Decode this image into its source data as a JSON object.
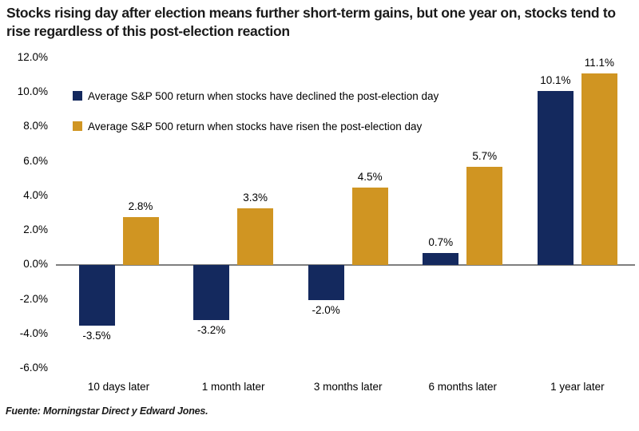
{
  "title": "Stocks rising day after election means further short-term gains, but one year on, stocks tend to rise regardless of this post-election reaction",
  "footer": "Fuente: Morningstar Direct y Edward Jones.",
  "colors": {
    "declined_bar": "#14295e",
    "risen_bar": "#d09522",
    "axis_line": "#7f7f7f",
    "text": "#000000",
    "title_text": "#1a1a1a"
  },
  "chart_data": {
    "type": "bar",
    "title": "Stocks rising day after election means further short-term gains, but one year on, stocks tend to rise regardless of this post-election reaction",
    "categories": [
      "10 days later",
      "1 month later",
      "3 months later",
      "6 months later",
      "1 year later"
    ],
    "series": [
      {
        "name": "Average S&P 500 return when stocks have declined the post-election day",
        "values": [
          -3.5,
          -3.2,
          -2.0,
          0.7,
          10.1
        ],
        "labels": [
          "-3.5%",
          "-3.2%",
          "-2.0%",
          "0.7%",
          "10.1%"
        ],
        "color_key": "declined_bar"
      },
      {
        "name": "Average S&P 500 return when stocks have risen the post-election day",
        "values": [
          2.8,
          3.3,
          4.5,
          5.7,
          11.1
        ],
        "labels": [
          "2.8%",
          "3.3%",
          "4.5%",
          "5.7%",
          "11.1%"
        ],
        "color_key": "risen_bar"
      }
    ],
    "xlabel": "",
    "ylabel": "",
    "ylim": [
      -6,
      12
    ],
    "ytick_step": 2,
    "ytick_labels": [
      "12.0%",
      "10.0%",
      "8.0%",
      "6.0%",
      "4.0%",
      "2.0%",
      "0.0%",
      "-2.0%",
      "-4.0%",
      "-6.0%"
    ],
    "grid": false,
    "legend_position": "top-left"
  }
}
